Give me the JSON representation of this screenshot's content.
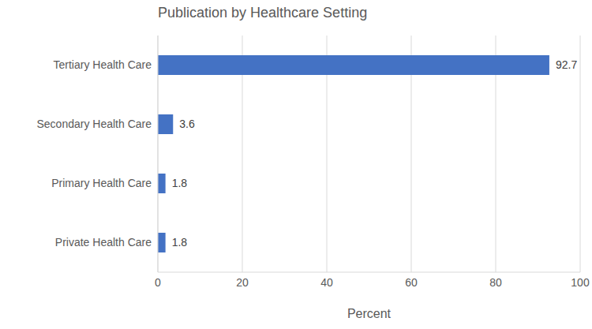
{
  "chart_data": {
    "type": "bar",
    "title": "Publication by Healthcare Setting",
    "x_label": "Percent",
    "categories": [
      "Tertiary Health Care",
      "Secondary Health Care",
      "Primary Health Care",
      "Private Health Care"
    ],
    "values": [
      92.7,
      3.6,
      1.8,
      1.8
    ],
    "color": "#4472c4",
    "xlim": [
      0,
      100
    ],
    "xticks": [
      0,
      20,
      40,
      60,
      80,
      100
    ],
    "grid": true,
    "orientation": "horizontal",
    "data_labels": true
  }
}
